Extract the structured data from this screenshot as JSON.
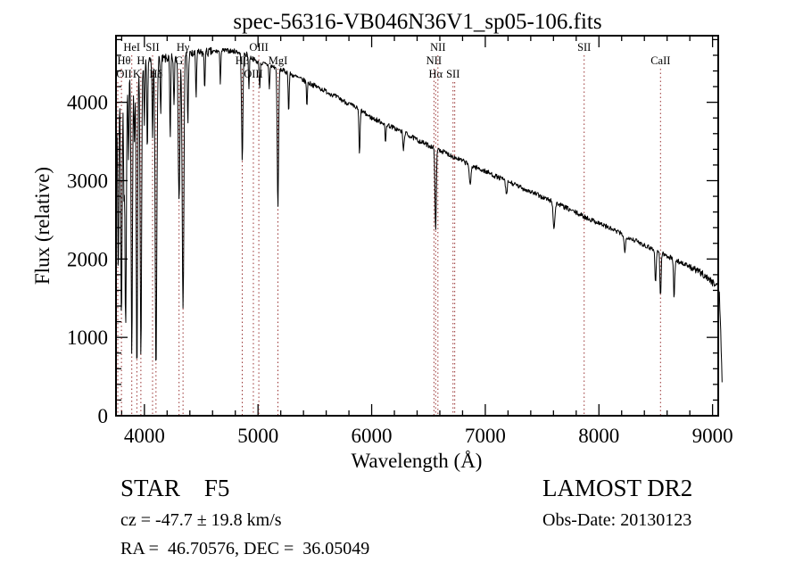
{
  "header": {
    "title": "spec-56316-VB046N36V1_sp05-106.fits"
  },
  "axes": {
    "x_label": "Wavelength (Å)",
    "y_label": "Flux (relative)"
  },
  "footer": {
    "classification": "STAR    F5",
    "survey": "LAMOST DR2",
    "velocity": "cz = -47.7 ± 19.8 km/s",
    "obs_date": "Obs-Date: 20130123",
    "coordinates": "RA =  46.70576, DEC =  36.05049"
  },
  "chart_data": {
    "type": "line",
    "title": "spec-56316-VB046N36V1_sp05-106.fits",
    "xlabel": "Wavelength (Å)",
    "ylabel": "Flux (relative)",
    "xlim": [
      3750,
      9050
    ],
    "ylim": [
      0,
      4850
    ],
    "domain": [
      3752,
      9085
    ],
    "x_ticks": [
      4000,
      5000,
      6000,
      7000,
      8000,
      9000
    ],
    "y_ticks": [
      0,
      1000,
      2000,
      3000,
      4000
    ],
    "x_minor_step": 200,
    "y_minor_step": 200,
    "grid": false,
    "legend": "none",
    "line_color": "#000000",
    "marker_color": "#993333",
    "continuum_format": [
      "wavelength",
      "flux"
    ],
    "continuum": [
      [
        3752,
        3600
      ],
      [
        3775,
        4100
      ],
      [
        3800,
        4250
      ],
      [
        3850,
        4320
      ],
      [
        3900,
        4400
      ],
      [
        3950,
        4450
      ],
      [
        4000,
        4500
      ],
      [
        4100,
        4530
      ],
      [
        4200,
        4560
      ],
      [
        4300,
        4590
      ],
      [
        4400,
        4610
      ],
      [
        4500,
        4625
      ],
      [
        4600,
        4645
      ],
      [
        4700,
        4660
      ],
      [
        4800,
        4650
      ],
      [
        4900,
        4610
      ],
      [
        5000,
        4510
      ],
      [
        5100,
        4470
      ],
      [
        5200,
        4420
      ],
      [
        5300,
        4350
      ],
      [
        5400,
        4280
      ],
      [
        5500,
        4210
      ],
      [
        5600,
        4140
      ],
      [
        5700,
        4060
      ],
      [
        5800,
        3980
      ],
      [
        5900,
        3900
      ],
      [
        6000,
        3800
      ],
      [
        6100,
        3740
      ],
      [
        6200,
        3670
      ],
      [
        6300,
        3600
      ],
      [
        6400,
        3520
      ],
      [
        6500,
        3450
      ],
      [
        6600,
        3390
      ],
      [
        6700,
        3320
      ],
      [
        6800,
        3250
      ],
      [
        6900,
        3180
      ],
      [
        7000,
        3120
      ],
      [
        7100,
        3050
      ],
      [
        7200,
        2990
      ],
      [
        7300,
        2920
      ],
      [
        7400,
        2860
      ],
      [
        7500,
        2790
      ],
      [
        7600,
        2730
      ],
      [
        7700,
        2660
      ],
      [
        7800,
        2590
      ],
      [
        7900,
        2520
      ],
      [
        8000,
        2460
      ],
      [
        8100,
        2390
      ],
      [
        8200,
        2320
      ],
      [
        8300,
        2250
      ],
      [
        8400,
        2180
      ],
      [
        8500,
        2110
      ],
      [
        8600,
        2040
      ],
      [
        8700,
        1970
      ],
      [
        8800,
        1900
      ],
      [
        8900,
        1820
      ],
      [
        8950,
        1770
      ],
      [
        9000,
        1700
      ],
      [
        9045,
        1680
      ],
      [
        9060,
        1540
      ],
      [
        9072,
        1050
      ],
      [
        9085,
        420
      ]
    ],
    "absorption_line_format": [
      "wavelength",
      "depth",
      "sigma"
    ],
    "absorption_lines": [
      [
        3770,
        2200,
        5
      ],
      [
        3798,
        3000,
        6
      ],
      [
        3820,
        1400,
        4
      ],
      [
        3835,
        3200,
        6
      ],
      [
        3860,
        1100,
        4
      ],
      [
        3889,
        3650,
        6
      ],
      [
        3912,
        900,
        4
      ],
      [
        3934,
        3900,
        6
      ],
      [
        3969,
        3780,
        6
      ],
      [
        4000,
        800,
        4
      ],
      [
        4026,
        1200,
        4
      ],
      [
        4072,
        1000,
        4
      ],
      [
        4102,
        4000,
        7
      ],
      [
        4144,
        700,
        4
      ],
      [
        4227,
        1100,
        4
      ],
      [
        4260,
        650,
        4
      ],
      [
        4305,
        1800,
        7
      ],
      [
        4340,
        3250,
        7
      ],
      [
        4383,
        900,
        4
      ],
      [
        4455,
        550,
        4
      ],
      [
        4530,
        450,
        4
      ],
      [
        4668,
        400,
        4
      ],
      [
        4861,
        1350,
        6
      ],
      [
        4920,
        420,
        4
      ],
      [
        5015,
        320,
        4
      ],
      [
        5100,
        300,
        4
      ],
      [
        5175,
        1800,
        6
      ],
      [
        5270,
        520,
        4
      ],
      [
        5430,
        300,
        4
      ],
      [
        5893,
        580,
        5
      ],
      [
        6122,
        260,
        4
      ],
      [
        6280,
        240,
        5
      ],
      [
        6563,
        1020,
        6
      ],
      [
        6867,
        280,
        7
      ],
      [
        7186,
        200,
        6
      ],
      [
        7605,
        320,
        8
      ],
      [
        8228,
        230,
        6
      ],
      [
        8498,
        430,
        5
      ],
      [
        8542,
        570,
        5
      ],
      [
        8662,
        510,
        5
      ]
    ],
    "noise": {
      "seed": 7,
      "step": 4,
      "regions": [
        {
          "upto": 4600,
          "amp": 60
        },
        {
          "upto": 8800,
          "amp": 32
        },
        {
          "upto": 9100,
          "amp": 45
        }
      ]
    },
    "line_markers": [
      {
        "label": "OII",
        "wavelength": 3727,
        "row": 3
      },
      {
        "label": "Hθ",
        "wavelength": 3798,
        "row": 2
      },
      {
        "label": "HeI",
        "wavelength": 3889,
        "row": 1
      },
      {
        "label": "K",
        "wavelength": 3934,
        "row": 3
      },
      {
        "label": "H",
        "wavelength": 3969,
        "row": 2
      },
      {
        "label": "SII",
        "wavelength": 4072,
        "row": 1
      },
      {
        "label": "Hδ",
        "wavelength": 4102,
        "row": 3
      },
      {
        "label": "G",
        "wavelength": 4305,
        "row": 2
      },
      {
        "label": "Hγ",
        "wavelength": 4340,
        "row": 1
      },
      {
        "label": "Hβ",
        "wavelength": 4861,
        "row": 2
      },
      {
        "label": "OIII",
        "wavelength": 4959,
        "row": 3
      },
      {
        "label": "OIII",
        "wavelength": 5007,
        "row": 1
      },
      {
        "label": "MgI",
        "wavelength": 5175,
        "row": 2
      },
      {
        "label": "NII",
        "wavelength": 6548,
        "row": 2
      },
      {
        "label": "Hα",
        "wavelength": 6563,
        "row": 3
      },
      {
        "label": "NII",
        "wavelength": 6583,
        "row": 1
      },
      {
        "label": "SII",
        "wavelength": 6716,
        "row": 3
      },
      {
        "label": "",
        "wavelength": 6731,
        "row": 3
      },
      {
        "label": "SII",
        "wavelength": 7870,
        "row": 1
      },
      {
        "label": "CaII",
        "wavelength": 8542,
        "row": 2
      }
    ]
  }
}
